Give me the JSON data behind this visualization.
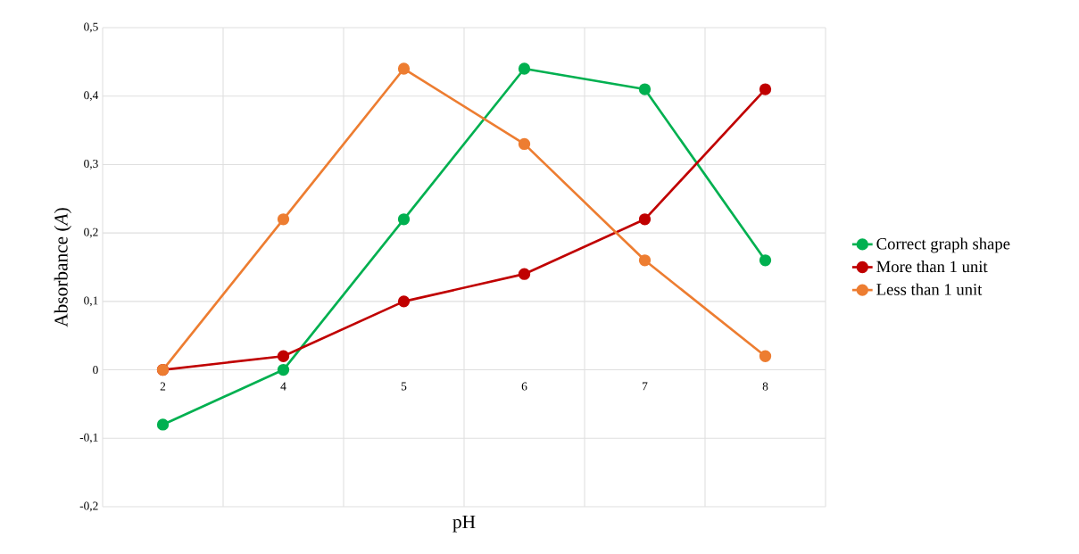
{
  "chart_data": {
    "type": "line",
    "xlabel": "pH",
    "ylabel": "Absorbance  (*A*)",
    "categories": [
      "2",
      "4",
      "5",
      "6",
      "7",
      "8"
    ],
    "series": [
      {
        "name": "Correct graph shape",
        "color": "#00b050",
        "values": [
          -0.08,
          0.0,
          0.22,
          0.44,
          0.41,
          0.16
        ]
      },
      {
        "name": "More than 1 unit",
        "color": "#c00000",
        "values": [
          0.0,
          0.02,
          0.1,
          0.14,
          0.22,
          0.41
        ]
      },
      {
        "name": "Less than  1 unit",
        "color": "#ed7d31",
        "values": [
          0.0,
          0.22,
          0.44,
          0.33,
          0.16,
          0.02
        ]
      }
    ],
    "ylim": [
      -0.2,
      0.5
    ],
    "yticks": [
      {
        "value": -0.2,
        "label": "-0,2"
      },
      {
        "value": -0.1,
        "label": "-0,1"
      },
      0,
      {
        "value": 0.1,
        "label": "0,1"
      },
      {
        "value": 0.2,
        "label": "0,2"
      },
      {
        "value": 0.3,
        "label": "0,3"
      },
      {
        "value": 0.4,
        "label": "0,4"
      },
      {
        "value": 0.5,
        "label": "0,5"
      }
    ],
    "grid": true,
    "legend": "right",
    "marker": "circle",
    "line_style": "solid"
  }
}
